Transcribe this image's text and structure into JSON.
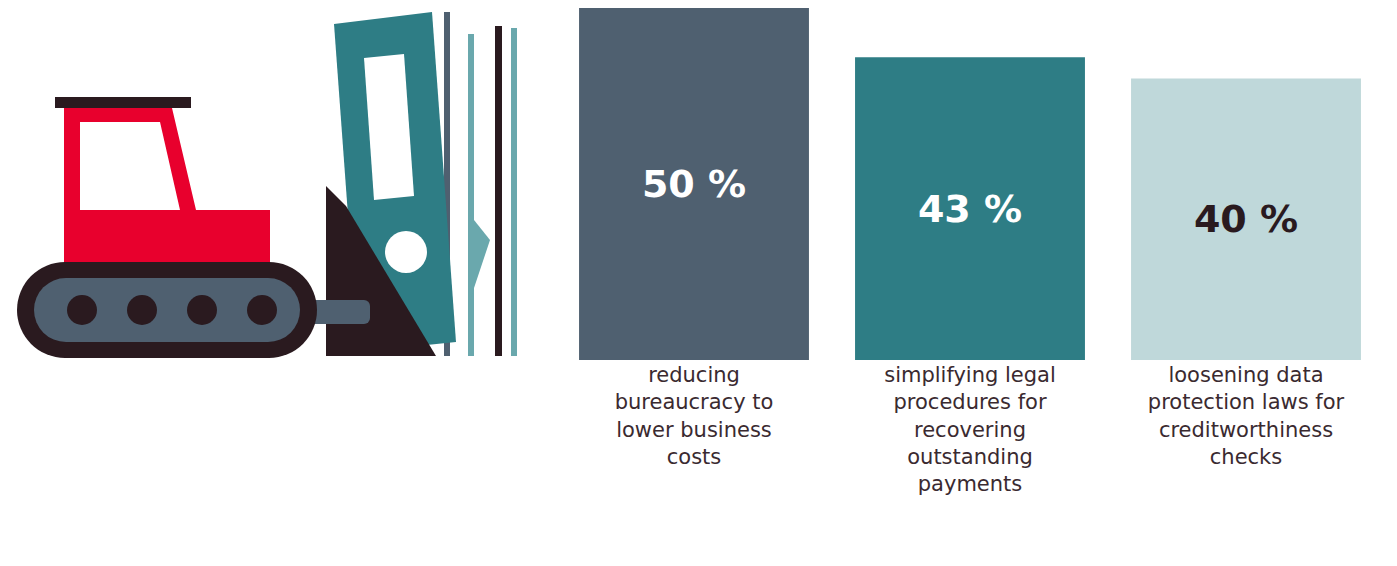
{
  "chart_data": {
    "type": "bar",
    "categories": [
      "reducing bureaucracy to lower business costs",
      "simplifying legal procedures for recovering outstanding payments",
      "loosening data protection laws for creditworthiness checks"
    ],
    "values": [
      50,
      43,
      40
    ],
    "value_labels": [
      "50 %",
      "43 %",
      "40 %"
    ],
    "colors": [
      "#4f6070",
      "#2e7d85",
      "#bfd8da"
    ],
    "ylim": [
      0,
      50
    ],
    "data_labels": true,
    "tick_labels": "x"
  }
}
